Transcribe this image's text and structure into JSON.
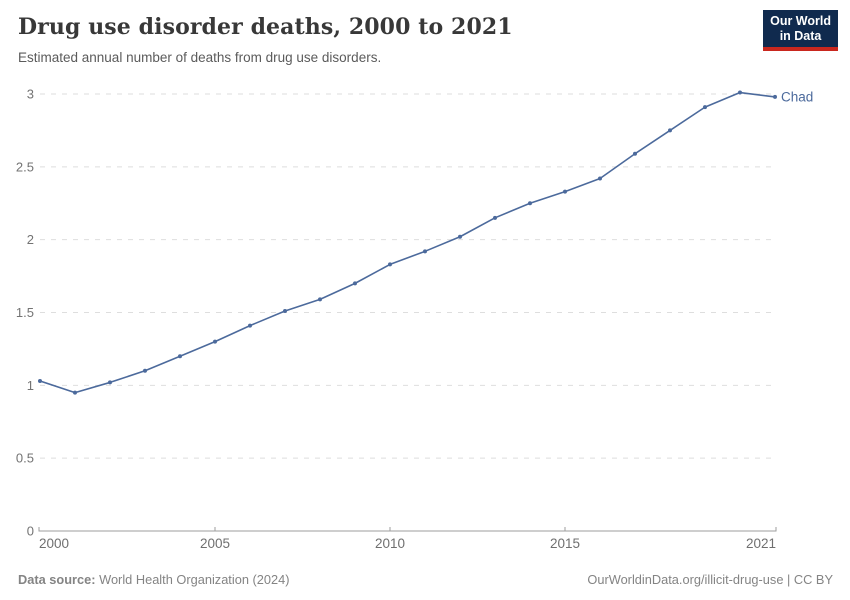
{
  "header": {
    "title": "Drug use disorder deaths, 2000 to 2021",
    "subtitle": "Estimated annual number of deaths from drug use disorders.",
    "logo": {
      "line1": "Our World",
      "line2": "in Data"
    }
  },
  "footer": {
    "source_label": "Data source:",
    "source_value": "World Health Organization (2024)",
    "link": "OurWorldinData.org/illicit-drug-use | CC BY"
  },
  "colors": {
    "series_blue": "#4C6A9C",
    "logo_navy": "#102A4E",
    "logo_red": "#C9271E",
    "gridline": "#dedede",
    "axis": "#9e9e9e"
  },
  "chart_data": {
    "type": "line",
    "title": "Drug use disorder deaths, 2000 to 2021",
    "subtitle": "Estimated annual number of deaths from drug use disorders.",
    "xlabel": "",
    "ylabel": "",
    "x": [
      2000,
      2001,
      2002,
      2003,
      2004,
      2005,
      2006,
      2007,
      2008,
      2009,
      2010,
      2011,
      2012,
      2013,
      2014,
      2015,
      2016,
      2017,
      2018,
      2019,
      2020,
      2021
    ],
    "series": [
      {
        "name": "Chad",
        "color": "#4C6A9C",
        "values": [
          1.03,
          0.95,
          1.02,
          1.1,
          1.2,
          1.3,
          1.41,
          1.51,
          1.59,
          1.7,
          1.83,
          1.92,
          2.02,
          2.15,
          2.25,
          2.33,
          2.42,
          2.59,
          2.75,
          2.91,
          3.01,
          2.98
        ]
      }
    ],
    "xlim": [
      2000,
      2021
    ],
    "ylim": [
      0,
      3
    ],
    "yticks": [
      0,
      0.5,
      1,
      1.5,
      2,
      2.5,
      3
    ],
    "xticks": [
      2000,
      2005,
      2010,
      2015,
      2021
    ],
    "grid": "horizontal-dashed",
    "legend": "end-of-line-label"
  }
}
